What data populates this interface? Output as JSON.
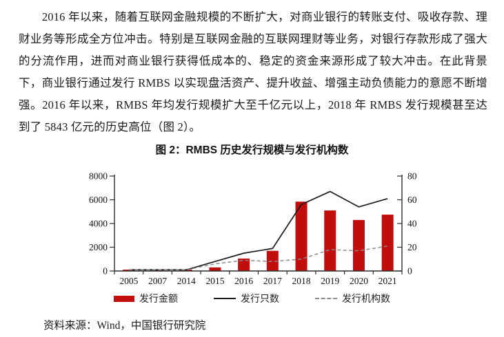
{
  "document": {
    "paragraph": "2016 年以来，随着互联网金融规模的不断扩大，对商业银行的转账支付、吸收存款、理财业务等形成全方位冲击。特别是互联网金融的互联网理财等业务，对银行存款形成了强大的分流作用，进而对商业银行获得低成本的、稳定的资金来源形成了较大冲击。在此背景下，商业银行通过发行 RMBS 以实现盘活资产、提升收益、增强主动负债能力的意愿不断增强。2016 年以来，RMBS 年均发行规模扩大至千亿元以上，2018 年 RMBS 发行规模甚至达到了 5843 亿元的历史高位（图 2）。",
    "source": "资料来源：Wind，中国银行研究院"
  },
  "chart_data": {
    "type": "bar",
    "subtype": "combo-bar-line",
    "title": "图 2：RMBS 历史发行规模与发行机构数",
    "categories": [
      "2005",
      "2007",
      "2014",
      "2015",
      "2016",
      "2017",
      "2018",
      "2019",
      "2020",
      "2021"
    ],
    "bar_series": {
      "name": "发行金额",
      "axis": "left",
      "color": "#c20d0d",
      "values": [
        100,
        100,
        80,
        300,
        1050,
        1700,
        5843,
        5100,
        4300,
        4750
      ]
    },
    "line_series": [
      {
        "name": "发行只数",
        "axis": "right",
        "style": "solid",
        "color": "#1a1a1a",
        "values": [
          1,
          1,
          1,
          8,
          15,
          19,
          56,
          67,
          54,
          61
        ]
      },
      {
        "name": "发行机构数",
        "axis": "right",
        "style": "dashed",
        "color": "#8a8a8a",
        "values": [
          1,
          1,
          1,
          6,
          9,
          8,
          10,
          18,
          17,
          21
        ]
      }
    ],
    "left_axis": {
      "min": 0,
      "max": 8000,
      "ticks": [
        0,
        2000,
        4000,
        6000,
        8000
      ]
    },
    "right_axis": {
      "min": 0,
      "max": 80,
      "ticks": [
        0,
        20,
        40,
        60,
        80
      ]
    },
    "grid": false,
    "legend_position": "bottom"
  },
  "colors": {
    "bar_red": "#c20d0d",
    "line_black": "#1a1a1a",
    "line_gray": "#8a8a8a",
    "axis": "#2b2b2b"
  }
}
